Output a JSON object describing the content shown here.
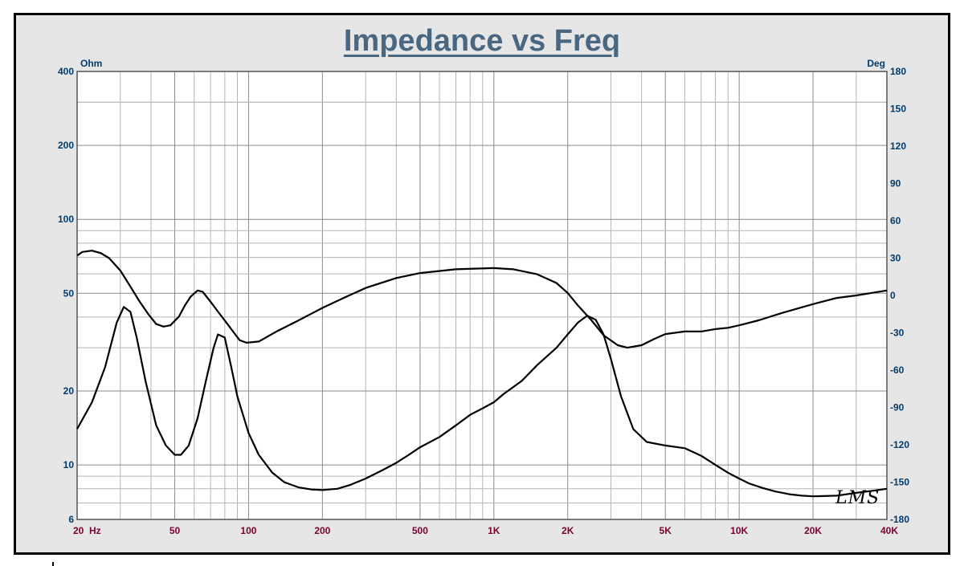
{
  "chart_data": {
    "type": "line",
    "title": "Impedance vs Freq",
    "left_axis": {
      "unit": "Ohm",
      "scale": "log",
      "range": [
        6,
        400
      ],
      "ticks": [
        6,
        10,
        20,
        50,
        100,
        200,
        400
      ],
      "tick_labels": [
        "6",
        "10",
        "20",
        "50",
        "100",
        "200",
        "400"
      ]
    },
    "right_axis": {
      "unit": "Deg",
      "scale": "linear",
      "range": [
        -180,
        180
      ],
      "ticks": [
        -180,
        -150,
        -120,
        -90,
        -60,
        -30,
        0,
        30,
        60,
        90,
        120,
        150,
        180
      ],
      "tick_labels": [
        "-180",
        "-150",
        "-120",
        "-90",
        "-60",
        "-30",
        "0",
        "30",
        "60",
        "90",
        "120",
        "150",
        "180"
      ]
    },
    "x_axis": {
      "scale": "log",
      "range": [
        20,
        40000
      ],
      "ticks": [
        20,
        50,
        100,
        200,
        500,
        1000,
        2000,
        5000,
        10000,
        20000,
        40000
      ],
      "tick_labels": [
        "20  Hz",
        "50",
        "100",
        "200",
        "500",
        "1K",
        "2K",
        "5K",
        "10K",
        "20K",
        "40K"
      ]
    },
    "grid": true,
    "series": [
      {
        "axis": "left",
        "points": [
          [
            20,
            14
          ],
          [
            23,
            18
          ],
          [
            26,
            25
          ],
          [
            29,
            38
          ],
          [
            31,
            44
          ],
          [
            33,
            42
          ],
          [
            35,
            33
          ],
          [
            38,
            22
          ],
          [
            42,
            14.5
          ],
          [
            46,
            12
          ],
          [
            50,
            11
          ],
          [
            53,
            11
          ],
          [
            57,
            12
          ],
          [
            62,
            15.5
          ],
          [
            67,
            22
          ],
          [
            72,
            30
          ],
          [
            75,
            34
          ],
          [
            80,
            33
          ],
          [
            85,
            25
          ],
          [
            90,
            19
          ],
          [
            100,
            13.5
          ],
          [
            110,
            11
          ],
          [
            125,
            9.3
          ],
          [
            140,
            8.5
          ],
          [
            160,
            8.1
          ],
          [
            180,
            7.95
          ],
          [
            200,
            7.9
          ],
          [
            230,
            8.0
          ],
          [
            260,
            8.3
          ],
          [
            300,
            8.8
          ],
          [
            350,
            9.5
          ],
          [
            400,
            10.2
          ],
          [
            450,
            11.0
          ],
          [
            500,
            11.8
          ],
          [
            600,
            13.0
          ],
          [
            700,
            14.5
          ],
          [
            800,
            16.0
          ],
          [
            900,
            17.0
          ],
          [
            1000,
            18.0
          ],
          [
            1100,
            19.5
          ],
          [
            1300,
            22.0
          ],
          [
            1500,
            25.5
          ],
          [
            1800,
            30.0
          ],
          [
            2000,
            34.0
          ],
          [
            2200,
            38.0
          ],
          [
            2400,
            40.5
          ],
          [
            2600,
            39.0
          ],
          [
            2800,
            34.0
          ],
          [
            3000,
            27.0
          ],
          [
            3300,
            19.0
          ],
          [
            3700,
            14.0
          ],
          [
            4200,
            12.4
          ],
          [
            5000,
            12.0
          ],
          [
            6000,
            11.7
          ],
          [
            7000,
            10.9
          ],
          [
            8000,
            10.0
          ],
          [
            9000,
            9.3
          ],
          [
            10000,
            8.8
          ],
          [
            11000,
            8.4
          ],
          [
            12500,
            8.05
          ],
          [
            14000,
            7.8
          ],
          [
            16000,
            7.6
          ],
          [
            18000,
            7.5
          ],
          [
            20000,
            7.45
          ],
          [
            25000,
            7.5
          ],
          [
            30000,
            7.7
          ],
          [
            35000,
            7.85
          ],
          [
            40000,
            8.0
          ]
        ]
      },
      {
        "axis": "right",
        "points": [
          [
            20,
            32
          ],
          [
            21,
            35
          ],
          [
            23,
            36
          ],
          [
            25,
            34
          ],
          [
            27,
            30
          ],
          [
            30,
            20
          ],
          [
            33,
            7
          ],
          [
            36,
            -5
          ],
          [
            39,
            -15
          ],
          [
            42,
            -23
          ],
          [
            45,
            -25
          ],
          [
            48,
            -24
          ],
          [
            52,
            -17
          ],
          [
            55,
            -8
          ],
          [
            58,
            -1
          ],
          [
            62,
            4
          ],
          [
            65,
            3
          ],
          [
            70,
            -5
          ],
          [
            75,
            -13
          ],
          [
            82,
            -23
          ],
          [
            88,
            -31
          ],
          [
            92,
            -36
          ],
          [
            98,
            -38
          ],
          [
            110,
            -37
          ],
          [
            130,
            -29
          ],
          [
            160,
            -20
          ],
          [
            200,
            -10
          ],
          [
            250,
            -1
          ],
          [
            300,
            6
          ],
          [
            400,
            14
          ],
          [
            500,
            18
          ],
          [
            700,
            21
          ],
          [
            1000,
            22
          ],
          [
            1200,
            21
          ],
          [
            1500,
            17
          ],
          [
            1800,
            10
          ],
          [
            2000,
            2
          ],
          [
            2200,
            -8
          ],
          [
            2500,
            -20
          ],
          [
            2800,
            -32
          ],
          [
            3200,
            -40
          ],
          [
            3500,
            -42
          ],
          [
            4000,
            -40
          ],
          [
            4500,
            -35
          ],
          [
            5000,
            -31
          ],
          [
            6000,
            -29
          ],
          [
            7000,
            -29
          ],
          [
            8000,
            -27
          ],
          [
            9000,
            -26
          ],
          [
            10000,
            -24
          ],
          [
            12000,
            -20
          ],
          [
            15000,
            -14
          ],
          [
            20000,
            -7
          ],
          [
            25000,
            -2
          ],
          [
            30000,
            0
          ],
          [
            40000,
            4
          ]
        ]
      }
    ]
  },
  "signature": "LMS"
}
